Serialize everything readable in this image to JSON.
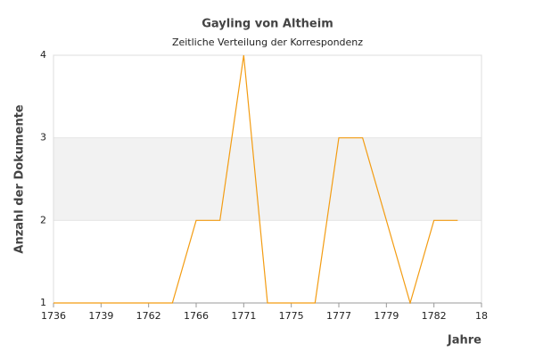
{
  "chart_data": {
    "type": "line",
    "title": "Gayling von Altheim",
    "subtitle": "Zeitliche Verteilung der Korrespondenz",
    "y_label": "Anzahl der Dokumente",
    "x_label": "Jahre",
    "categories": [
      "1736",
      null,
      "1739",
      null,
      "1762",
      null,
      "1766",
      null,
      "1771",
      null,
      "1775",
      null,
      "1777",
      null,
      "1779",
      null,
      "1782",
      null,
      "18"
    ],
    "series": [
      {
        "name": "Dokumente",
        "color": "#f39c12",
        "values": [
          1,
          1,
          1,
          1,
          1,
          1,
          2,
          2,
          4,
          1,
          1,
          1,
          3,
          3,
          2,
          1,
          2,
          2,
          null
        ]
      }
    ],
    "ylim": [
      1,
      4
    ],
    "yticks": [
      1,
      2,
      3,
      4
    ],
    "grid": true
  }
}
